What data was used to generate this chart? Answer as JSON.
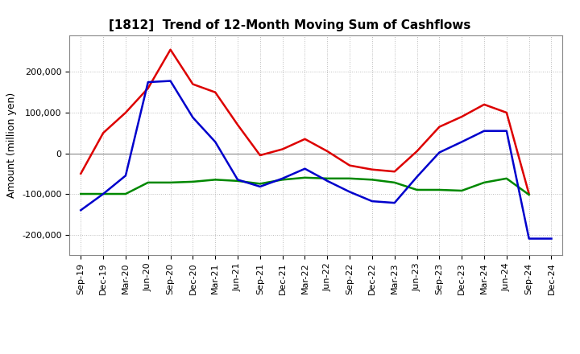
{
  "title": "[1812]  Trend of 12-Month Moving Sum of Cashflows",
  "ylabel": "Amount (million yen)",
  "x_labels": [
    "Sep-19",
    "Dec-19",
    "Mar-20",
    "Jun-20",
    "Sep-20",
    "Dec-20",
    "Mar-21",
    "Jun-21",
    "Sep-21",
    "Dec-21",
    "Mar-22",
    "Jun-22",
    "Sep-22",
    "Dec-22",
    "Mar-23",
    "Jun-23",
    "Sep-23",
    "Dec-23",
    "Mar-24",
    "Jun-24",
    "Sep-24",
    "Dec-24"
  ],
  "operating": [
    -50000,
    50000,
    100000,
    160000,
    255000,
    170000,
    150000,
    70000,
    -5000,
    10000,
    35000,
    5000,
    -30000,
    -40000,
    -45000,
    5000,
    65000,
    90000,
    120000,
    100000,
    -100000,
    null
  ],
  "investing": [
    -100000,
    -100000,
    -100000,
    -72000,
    -72000,
    -70000,
    -65000,
    -68000,
    -75000,
    -65000,
    -60000,
    -62000,
    -62000,
    -65000,
    -72000,
    -90000,
    -90000,
    -92000,
    -72000,
    -62000,
    -102000,
    null
  ],
  "free": [
    -140000,
    -100000,
    -55000,
    175000,
    178000,
    88000,
    28000,
    -65000,
    -82000,
    -62000,
    -38000,
    -68000,
    -95000,
    -118000,
    -122000,
    -58000,
    2000,
    28000,
    55000,
    55000,
    -210000,
    -210000
  ],
  "ylim": [
    -250000,
    290000
  ],
  "yticks": [
    -200000,
    -100000,
    0,
    100000,
    200000
  ],
  "color_operating": "#dd0000",
  "color_investing": "#008800",
  "color_free": "#0000cc",
  "bg_color": "#ffffff",
  "plot_bg_color": "#ffffff",
  "grid_color": "#bbbbbb",
  "linewidth": 1.8
}
